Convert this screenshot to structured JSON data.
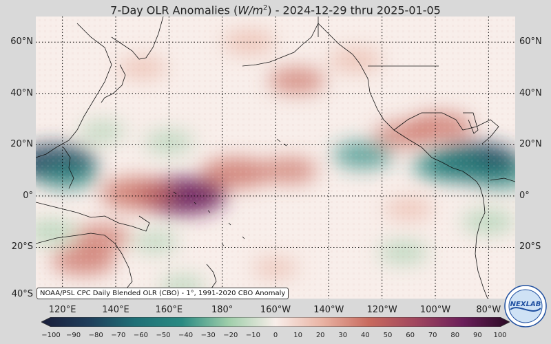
{
  "title": {
    "prefix": "7-Day OLR Anomalies (",
    "units": "W/m",
    "units_exp": "2",
    "suffix": ") - 2024-12-29 thru 2025-01-05"
  },
  "credit": "NOAA/PSL CPC Daily Blended OLR (CBO) - 1°, 1991-2020 CBO Anomaly",
  "logo_text": "NEXLAB",
  "lat_labels_left": [
    "60°N",
    "40°N",
    "20°N",
    "0°",
    "20°S",
    "40°S"
  ],
  "lat_labels_right": [
    "60°N",
    "40°N",
    "20°N",
    "0°",
    "20°S"
  ],
  "lon_labels": [
    "120°E",
    "140°E",
    "160°E",
    "180°",
    "160°W",
    "140°W",
    "120°W",
    "100°W",
    "80°W"
  ],
  "colorbar_ticks": [
    "−100",
    "−90",
    "−80",
    "−70",
    "−60",
    "−50",
    "−40",
    "−30",
    "−20",
    "−10",
    "0",
    "10",
    "20",
    "30",
    "40",
    "50",
    "60",
    "70",
    "80",
    "90",
    "100"
  ],
  "colors": {
    "neg_strong": "#1f3d5a",
    "neg_mid": "#2a8a82",
    "neg_light": "#9fceaa",
    "neutral": "#f8eeea",
    "pos_light": "#e9b3a3",
    "pos_mid": "#c86a5e",
    "pos_strong": "#6b1f5a"
  },
  "map": {
    "lon_range": [
      110,
      290
    ],
    "lat_range": [
      -40,
      70
    ],
    "anomalies": [
      {
        "lon": 117,
        "lat": 13,
        "value": -70
      },
      {
        "lon": 122,
        "lat": 8,
        "value": -40
      },
      {
        "lon": 275,
        "lat": 13,
        "value": -80
      },
      {
        "lon": 265,
        "lat": 12,
        "value": -55
      },
      {
        "lon": 285,
        "lat": 8,
        "value": -40
      },
      {
        "lon": 233,
        "lat": 16,
        "value": -40
      },
      {
        "lon": 160,
        "lat": 21,
        "value": -25
      },
      {
        "lon": 135,
        "lat": 25,
        "value": -20
      },
      {
        "lon": 116,
        "lat": -14,
        "value": -30
      },
      {
        "lon": 248,
        "lat": -22,
        "value": -25
      },
      {
        "lon": 280,
        "lat": -10,
        "value": -30
      },
      {
        "lon": 155,
        "lat": -18,
        "value": -20
      },
      {
        "lon": 165,
        "lat": -35,
        "value": -20
      },
      {
        "lon": 165,
        "lat": 0,
        "value": 75
      },
      {
        "lon": 148,
        "lat": 1,
        "value": 55
      },
      {
        "lon": 185,
        "lat": 9,
        "value": 50
      },
      {
        "lon": 205,
        "lat": 10,
        "value": 35
      },
      {
        "lon": 128,
        "lat": -25,
        "value": 45
      },
      {
        "lon": 135,
        "lat": -16,
        "value": 35
      },
      {
        "lon": 262,
        "lat": 27,
        "value": 45
      },
      {
        "lon": 248,
        "lat": 24,
        "value": 35
      },
      {
        "lon": 208,
        "lat": 45,
        "value": 35
      },
      {
        "lon": 190,
        "lat": 60,
        "value": 30
      },
      {
        "lon": 150,
        "lat": 50,
        "value": 25
      },
      {
        "lon": 230,
        "lat": 53,
        "value": 30
      },
      {
        "lon": 250,
        "lat": -5,
        "value": 25
      },
      {
        "lon": 200,
        "lat": -28,
        "value": 20
      }
    ]
  }
}
